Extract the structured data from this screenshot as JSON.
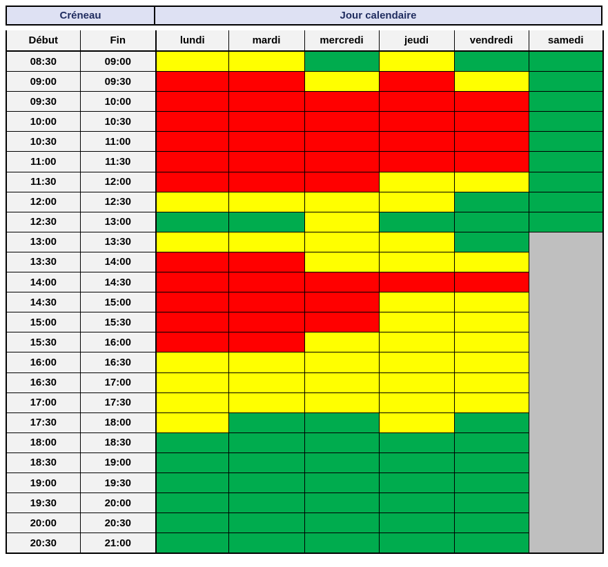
{
  "header": {
    "creneau": "Créneau",
    "jour_calendaire": "Jour calendaire"
  },
  "columns": {
    "debut": "Début",
    "fin": "Fin",
    "days": [
      "lundi",
      "mardi",
      "mercredi",
      "jeudi",
      "vendredi",
      "samedi"
    ]
  },
  "colors": {
    "red": "#FF0000",
    "yellow": "#FFFF00",
    "green": "#00AC4E",
    "unavailable": "#BFBFBF",
    "header_bg": "#DEE1F3",
    "label_bg": "#F2F2F2",
    "header_text": "#1F2C5F",
    "border": "#000000"
  },
  "chart_data": {
    "type": "table",
    "x_categories": [
      "lundi",
      "mardi",
      "mercredi",
      "jeudi",
      "vendredi",
      "samedi"
    ],
    "cell_states": [
      "red",
      "yellow",
      "green",
      "unavailable"
    ],
    "samedi_merged_unavailable_from": "13:00",
    "rows": [
      {
        "debut": "08:30",
        "fin": "09:00",
        "cells": [
          "yellow",
          "yellow",
          "green",
          "yellow",
          "green",
          "green"
        ]
      },
      {
        "debut": "09:00",
        "fin": "09:30",
        "cells": [
          "red",
          "red",
          "yellow",
          "red",
          "yellow",
          "green"
        ]
      },
      {
        "debut": "09:30",
        "fin": "10:00",
        "cells": [
          "red",
          "red",
          "red",
          "red",
          "red",
          "green"
        ]
      },
      {
        "debut": "10:00",
        "fin": "10:30",
        "cells": [
          "red",
          "red",
          "red",
          "red",
          "red",
          "green"
        ]
      },
      {
        "debut": "10:30",
        "fin": "11:00",
        "cells": [
          "red",
          "red",
          "red",
          "red",
          "red",
          "green"
        ]
      },
      {
        "debut": "11:00",
        "fin": "11:30",
        "cells": [
          "red",
          "red",
          "red",
          "red",
          "red",
          "green"
        ]
      },
      {
        "debut": "11:30",
        "fin": "12:00",
        "cells": [
          "red",
          "red",
          "red",
          "yellow",
          "yellow",
          "green"
        ]
      },
      {
        "debut": "12:00",
        "fin": "12:30",
        "cells": [
          "yellow",
          "yellow",
          "yellow",
          "yellow",
          "green",
          "green"
        ]
      },
      {
        "debut": "12:30",
        "fin": "13:00",
        "cells": [
          "green",
          "green",
          "yellow",
          "green",
          "green",
          "green"
        ]
      },
      {
        "debut": "13:00",
        "fin": "13:30",
        "cells": [
          "yellow",
          "yellow",
          "yellow",
          "yellow",
          "green",
          "unavailable"
        ]
      },
      {
        "debut": "13:30",
        "fin": "14:00",
        "cells": [
          "red",
          "red",
          "yellow",
          "yellow",
          "yellow",
          "unavailable"
        ]
      },
      {
        "debut": "14:00",
        "fin": "14:30",
        "cells": [
          "red",
          "red",
          "red",
          "red",
          "red",
          "unavailable"
        ]
      },
      {
        "debut": "14:30",
        "fin": "15:00",
        "cells": [
          "red",
          "red",
          "red",
          "yellow",
          "yellow",
          "unavailable"
        ]
      },
      {
        "debut": "15:00",
        "fin": "15:30",
        "cells": [
          "red",
          "red",
          "red",
          "yellow",
          "yellow",
          "unavailable"
        ]
      },
      {
        "debut": "15:30",
        "fin": "16:00",
        "cells": [
          "red",
          "red",
          "yellow",
          "yellow",
          "yellow",
          "unavailable"
        ]
      },
      {
        "debut": "16:00",
        "fin": "16:30",
        "cells": [
          "yellow",
          "yellow",
          "yellow",
          "yellow",
          "yellow",
          "unavailable"
        ]
      },
      {
        "debut": "16:30",
        "fin": "17:00",
        "cells": [
          "yellow",
          "yellow",
          "yellow",
          "yellow",
          "yellow",
          "unavailable"
        ]
      },
      {
        "debut": "17:00",
        "fin": "17:30",
        "cells": [
          "yellow",
          "yellow",
          "yellow",
          "yellow",
          "yellow",
          "unavailable"
        ]
      },
      {
        "debut": "17:30",
        "fin": "18:00",
        "cells": [
          "yellow",
          "green",
          "green",
          "yellow",
          "green",
          "unavailable"
        ]
      },
      {
        "debut": "18:00",
        "fin": "18:30",
        "cells": [
          "green",
          "green",
          "green",
          "green",
          "green",
          "unavailable"
        ]
      },
      {
        "debut": "18:30",
        "fin": "19:00",
        "cells": [
          "green",
          "green",
          "green",
          "green",
          "green",
          "unavailable"
        ]
      },
      {
        "debut": "19:00",
        "fin": "19:30",
        "cells": [
          "green",
          "green",
          "green",
          "green",
          "green",
          "unavailable"
        ]
      },
      {
        "debut": "19:30",
        "fin": "20:00",
        "cells": [
          "green",
          "green",
          "green",
          "green",
          "green",
          "unavailable"
        ]
      },
      {
        "debut": "20:00",
        "fin": "20:30",
        "cells": [
          "green",
          "green",
          "green",
          "green",
          "green",
          "unavailable"
        ]
      },
      {
        "debut": "20:30",
        "fin": "21:00",
        "cells": [
          "green",
          "green",
          "green",
          "green",
          "green",
          "unavailable"
        ]
      }
    ]
  }
}
